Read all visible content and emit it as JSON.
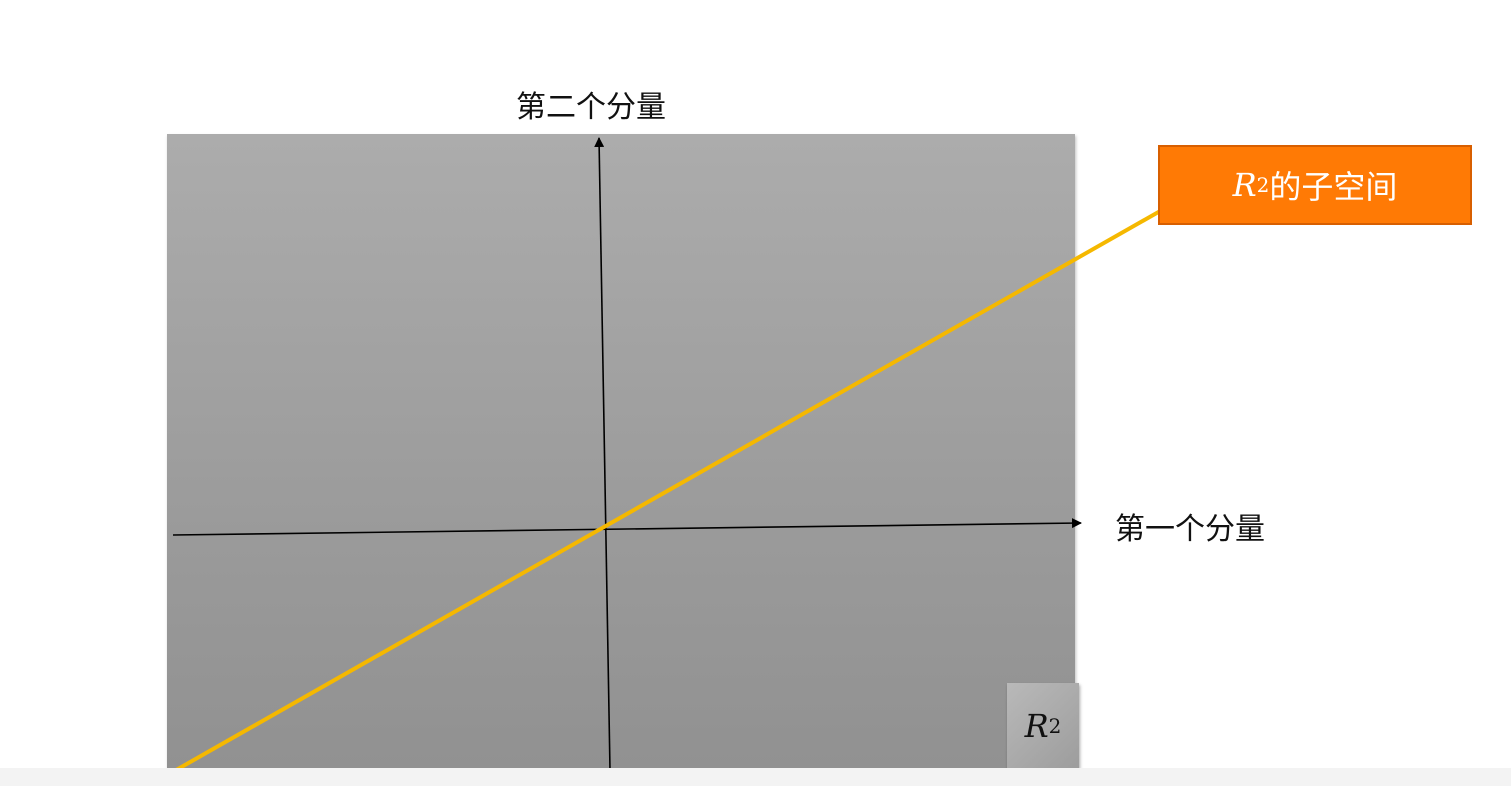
{
  "axes": {
    "horizontal_label": "第一个分量",
    "vertical_label": "第二个分量",
    "axis_color": "#000000"
  },
  "space_badge": {
    "symbol": "R",
    "exponent": "2"
  },
  "subspace_callout": {
    "symbol": "R",
    "exponent": "2",
    "text": "的子空间",
    "fill_color": "#ff7a05"
  },
  "subspace_line_color": "#f5b800",
  "plane_color": "#a3a3a3"
}
